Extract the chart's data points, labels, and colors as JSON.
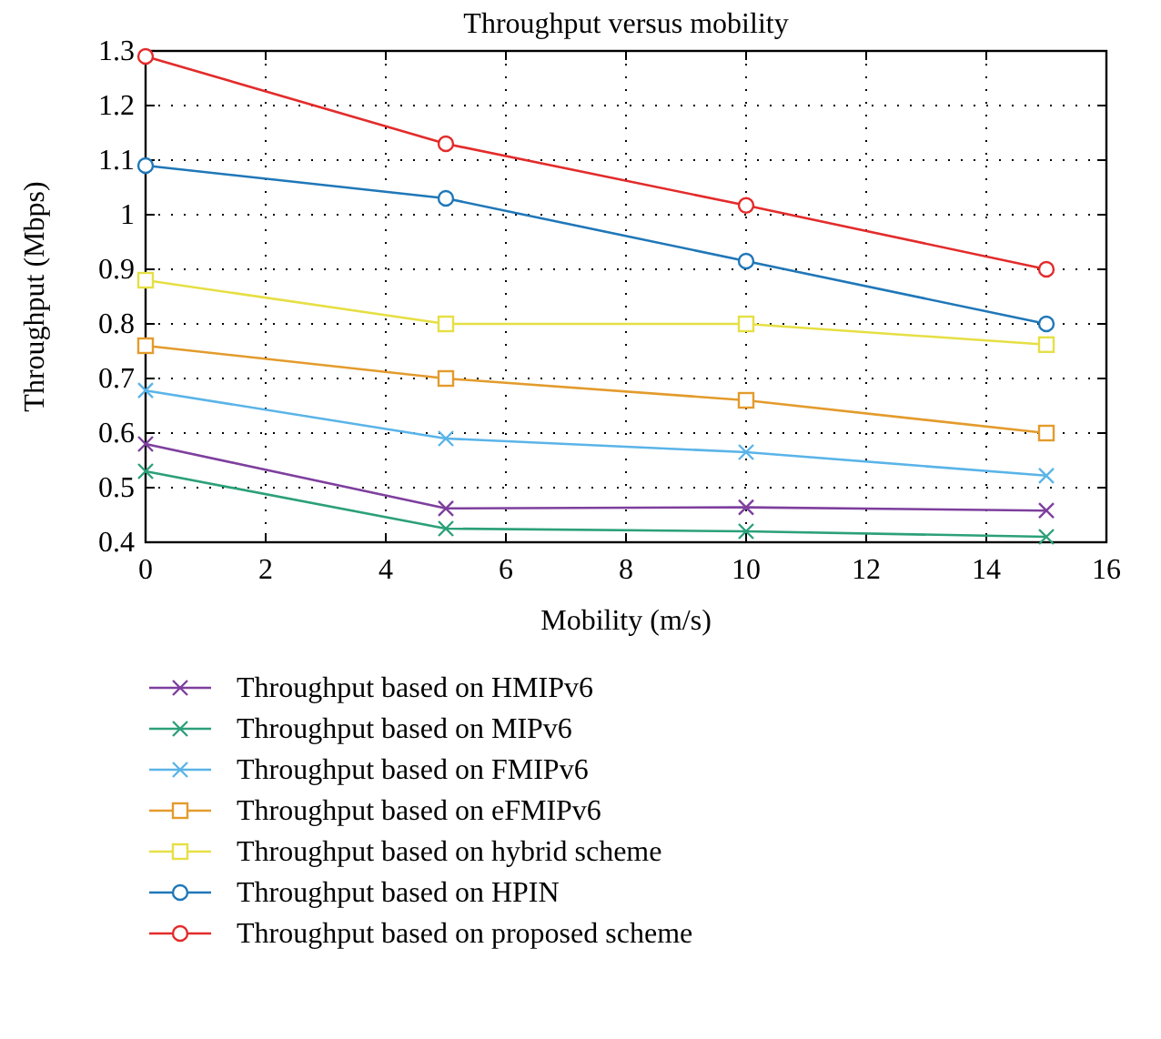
{
  "chart_data": {
    "type": "line",
    "title": "Throughput versus mobility",
    "xlabel": "Mobility (m/s)",
    "ylabel": "Throughput (Mbps)",
    "x": [
      0,
      5,
      10,
      15
    ],
    "xlim": [
      0,
      16
    ],
    "xticks": [
      0,
      2,
      4,
      6,
      8,
      10,
      12,
      14,
      16
    ],
    "ylim": [
      0.4,
      1.3
    ],
    "yticks": [
      0.4,
      0.5,
      0.6,
      0.7,
      0.8,
      0.9,
      1,
      1.1,
      1.2,
      1.3
    ],
    "grid": true,
    "legend": "bottom",
    "line_style": "solid",
    "series": [
      {
        "name": "Throughput based on HMIPv6",
        "color": "#7e3f9e",
        "marker": "cross",
        "values": [
          0.58,
          0.462,
          0.464,
          0.458
        ]
      },
      {
        "name": "Throughput based on MIPv6",
        "color": "#2ca07a",
        "marker": "cross",
        "values": [
          0.53,
          0.425,
          0.42,
          0.41
        ]
      },
      {
        "name": "Throughput based on FMIPv6",
        "color": "#5ab4e8",
        "marker": "cross",
        "values": [
          0.678,
          0.59,
          0.565,
          0.522
        ]
      },
      {
        "name": "Throughput based on eFMIPv6",
        "color": "#e39b2c",
        "marker": "square",
        "values": [
          0.76,
          0.7,
          0.66,
          0.6
        ]
      },
      {
        "name": "Throughput based on hybrid scheme",
        "color": "#e6df44",
        "marker": "square",
        "values": [
          0.88,
          0.8,
          0.8,
          0.762
        ]
      },
      {
        "name": "Throughput based on HPIN",
        "color": "#1f77b8",
        "marker": "circle",
        "values": [
          1.09,
          1.03,
          0.915,
          0.8
        ]
      },
      {
        "name": "Throughput based on proposed scheme",
        "color": "#e32b2b",
        "marker": "circle",
        "values": [
          1.29,
          1.13,
          1.017,
          0.9
        ]
      }
    ]
  }
}
